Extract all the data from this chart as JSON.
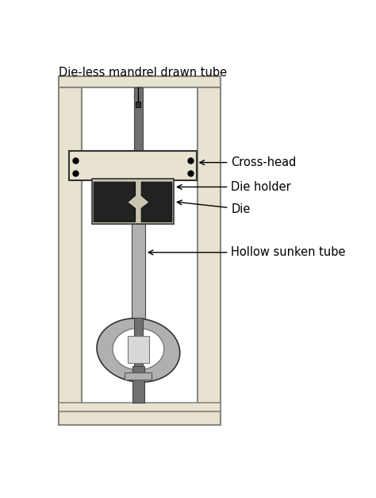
{
  "bg_color": "#ffffff",
  "col_color": "#e8e3d0",
  "col_edge": "#888880",
  "crosshead_color": "#e8e3d0",
  "crosshead_edge": "#333333",
  "die_holder_color": "#c8c4b0",
  "die_holder_edge": "#333333",
  "die_color": "#222222",
  "die_edge": "#111111",
  "mandrel_dark": "#707070",
  "mandrel_light": "#b0b0b0",
  "mandrel_edge": "#444444",
  "grip_outer": "#b0b0b0",
  "grip_mid": "#909090",
  "grip_inner_light": "#d8d8d8",
  "grip_white": "#f0f0f0",
  "grip_edge": "#333333",
  "base_color": "#e8e3d0",
  "base_edge": "#888880",
  "dot_color": "#000000",
  "title": "Die-less mandrel drawn tube",
  "label_crosshead": "Cross-head",
  "label_die_holder": "Die holder",
  "label_die": "Die",
  "label_tube": "Hollow sunken tube",
  "font_size": 10.5
}
